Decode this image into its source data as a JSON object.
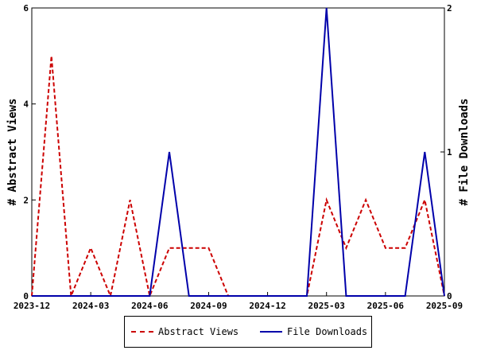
{
  "chart_data": {
    "type": "line",
    "x": [
      "2023-12",
      "2024-01",
      "2024-02",
      "2024-03",
      "2024-04",
      "2024-05",
      "2024-06",
      "2024-07",
      "2024-08",
      "2024-09",
      "2024-10",
      "2024-11",
      "2024-12",
      "2025-01",
      "2025-02",
      "2025-03",
      "2025-04",
      "2025-05",
      "2025-06",
      "2025-07",
      "2025-08",
      "2025-09"
    ],
    "series": [
      {
        "name": "Abstract Views",
        "axis": "left",
        "color": "#cc0000",
        "style": "dashed",
        "values": [
          0,
          5,
          0,
          1,
          0,
          2,
          0,
          1,
          1,
          1,
          0,
          0,
          0,
          0,
          0,
          2,
          1,
          2,
          1,
          1,
          2,
          0
        ]
      },
      {
        "name": "File Downloads",
        "axis": "right",
        "color": "#0000aa",
        "style": "solid",
        "values": [
          0,
          0,
          0,
          0,
          0,
          0,
          0,
          1,
          0,
          0,
          0,
          0,
          0,
          0,
          0,
          2,
          0,
          0,
          0,
          0,
          1,
          0
        ]
      }
    ],
    "xticks": [
      "2023-12",
      "2024-03",
      "2024-06",
      "2024-09",
      "2024-12",
      "2025-03",
      "2025-06",
      "2025-09"
    ],
    "ylabel": "# Abstract Views",
    "y2label": "# File Downloads",
    "ylim": [
      0,
      6
    ],
    "y2lim": [
      0,
      2
    ],
    "yticks": [
      "0",
      "2",
      "4",
      "6"
    ],
    "y2ticks": [
      "0",
      "1",
      "2"
    ],
    "legend_position": "bottom-center",
    "grid": false
  }
}
